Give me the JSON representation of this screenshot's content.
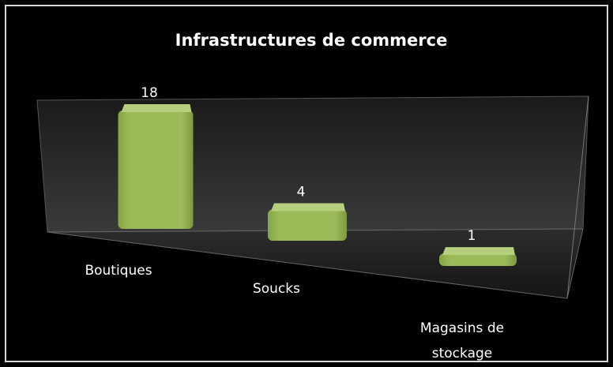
{
  "chart_data": {
    "type": "bar3d",
    "title": "Infrastructures de commerce",
    "categories": [
      "Boutiques",
      "Soucks",
      "Magasins de stockage"
    ],
    "values": [
      18,
      4,
      1
    ],
    "color": "#9bbb59"
  }
}
